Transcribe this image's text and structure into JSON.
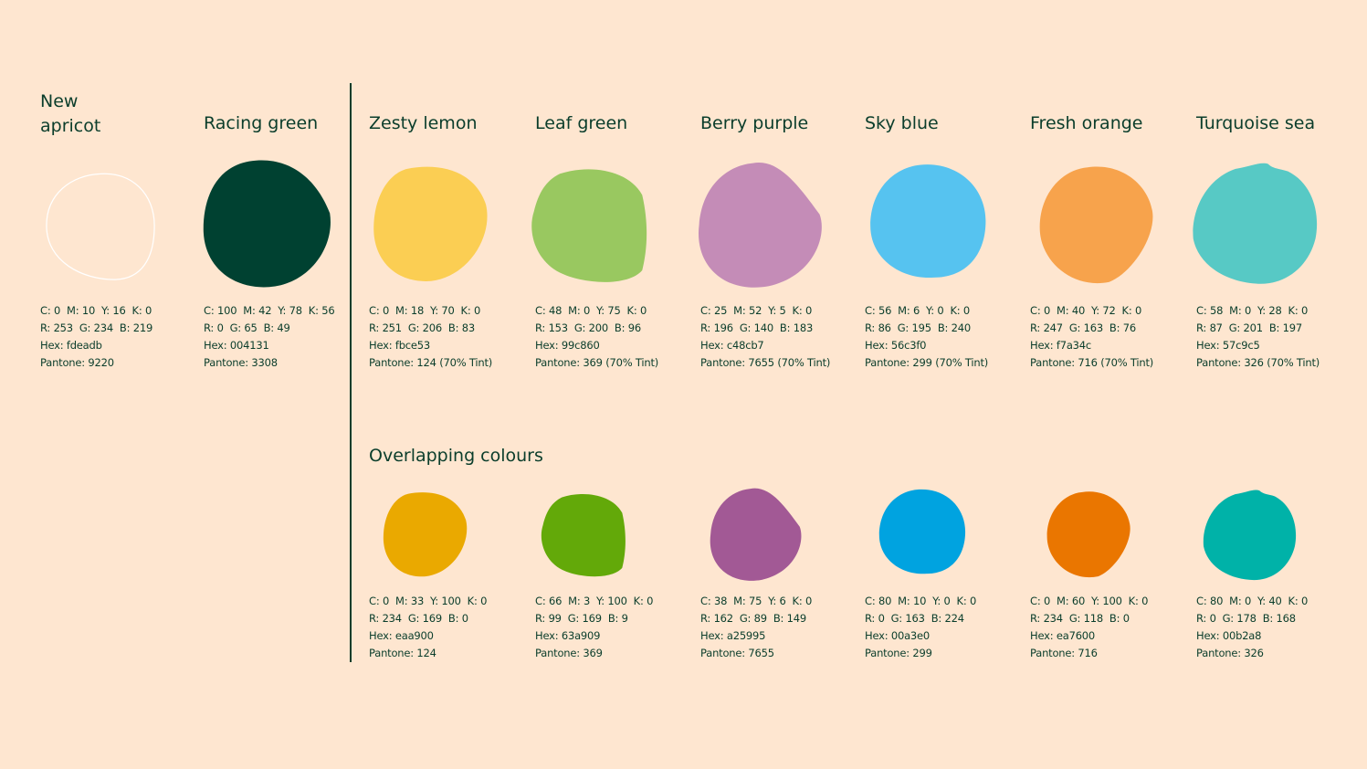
{
  "primary": [
    {
      "name": "New\napricot",
      "color": "#fdeadb",
      "outline": true,
      "specs": {
        "cmyk": "C: 0  M: 10  Y: 16  K: 0",
        "rgb": "R: 253  G: 234  B: 219",
        "hex": "Hex: fdeadb",
        "pantone": "Pantone: 9220"
      }
    },
    {
      "name": "Racing green",
      "color": "#004131",
      "specs": {
        "cmyk": "C: 100  M: 42  Y: 78  K: 56",
        "rgb": "R: 0  G: 65  B: 49",
        "hex": "Hex: 004131",
        "pantone": "Pantone: 3308"
      }
    }
  ],
  "secondary": [
    {
      "name": "Zesty lemon",
      "color": "#fbce53",
      "specs": {
        "cmyk": "C: 0  M: 18  Y: 70  K: 0",
        "rgb": "R: 251  G: 206  B: 83",
        "hex": "Hex: fbce53",
        "pantone": "Pantone: 124 (70% Tint)"
      }
    },
    {
      "name": "Leaf green",
      "color": "#99c860",
      "specs": {
        "cmyk": "C: 48  M: 0  Y: 75  K: 0",
        "rgb": "R: 153  G: 200  B: 96",
        "hex": "Hex: 99c860",
        "pantone": "Pantone: 369 (70% Tint)"
      }
    },
    {
      "name": "Berry purple",
      "color": "#c48cb7",
      "specs": {
        "cmyk": "C: 25  M: 52  Y: 5  K: 0",
        "rgb": "R: 196  G: 140  B: 183",
        "hex": "Hex: c48cb7",
        "pantone": "Pantone: 7655 (70% Tint)"
      }
    },
    {
      "name": "Sky blue",
      "color": "#56c3f0",
      "specs": {
        "cmyk": "C: 56  M: 6  Y: 0  K: 0",
        "rgb": "R: 86  G: 195  B: 240",
        "hex": "Hex: 56c3f0",
        "pantone": "Pantone: 299 (70% Tint)"
      }
    },
    {
      "name": "Fresh orange",
      "color": "#f7a34c",
      "specs": {
        "cmyk": "C: 0  M: 40  Y: 72  K: 0",
        "rgb": "R: 247  G: 163  B: 76",
        "hex": "Hex: f7a34c",
        "pantone": "Pantone: 716 (70% Tint)"
      }
    },
    {
      "name": "Turquoise sea",
      "color": "#57c9c5",
      "specs": {
        "cmyk": "C: 58  M: 0  Y: 28  K: 0",
        "rgb": "R: 87  G: 201  B: 197",
        "hex": "Hex: 57c9c5",
        "pantone": "Pantone: 326 (70% Tint)"
      }
    }
  ],
  "overlapping_title": "Overlapping colours",
  "overlapping": [
    {
      "color": "#eaa900",
      "specs": {
        "cmyk": "C: 0  M: 33  Y: 100  K: 0",
        "rgb": "R: 234  G: 169  B: 0",
        "hex": "Hex: eaa900",
        "pantone": "Pantone: 124"
      }
    },
    {
      "color": "#63a909",
      "specs": {
        "cmyk": "C: 66  M: 3  Y: 100  K: 0",
        "rgb": "R: 99  G: 169  B: 9",
        "hex": "Hex: 63a909",
        "pantone": "Pantone: 369"
      }
    },
    {
      "color": "#a25995",
      "specs": {
        "cmyk": "C: 38  M: 75  Y: 6  K: 0",
        "rgb": "R: 162  G: 89  B: 149",
        "hex": "Hex: a25995",
        "pantone": "Pantone: 7655"
      }
    },
    {
      "color": "#00a3e0",
      "specs": {
        "cmyk": "C: 80  M: 10  Y: 0  K: 0",
        "rgb": "R: 0  G: 163  B: 224",
        "hex": "Hex: 00a3e0",
        "pantone": "Pantone: 299"
      }
    },
    {
      "color": "#ea7600",
      "specs": {
        "cmyk": "C: 0  M: 60  Y: 100  K: 0",
        "rgb": "R: 234  G: 118  B: 0",
        "hex": "Hex: ea7600",
        "pantone": "Pantone: 716"
      }
    },
    {
      "color": "#00b2a8",
      "specs": {
        "cmyk": "C: 80  M: 0  Y: 40  K: 0",
        "rgb": "R: 0  G: 178  B: 168",
        "hex": "Hex: 00b2a8",
        "pantone": "Pantone: 326"
      }
    }
  ]
}
